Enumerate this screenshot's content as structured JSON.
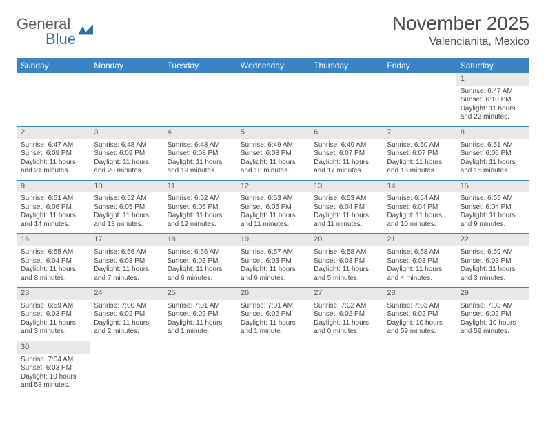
{
  "logo": {
    "text1": "General",
    "text2": "Blue"
  },
  "title": "November 2025",
  "location": "Valencianita, Mexico",
  "colors": {
    "header_bg": "#3b84c4",
    "header_text": "#ffffff",
    "daynum_bg": "#e8e8e8",
    "row_border": "#3b84c4",
    "logo_gray": "#5a5a5a",
    "logo_blue": "#2f6fa7"
  },
  "weekdays": [
    "Sunday",
    "Monday",
    "Tuesday",
    "Wednesday",
    "Thursday",
    "Friday",
    "Saturday"
  ],
  "weeks": [
    [
      null,
      null,
      null,
      null,
      null,
      null,
      {
        "n": "1",
        "sr": "6:47 AM",
        "ss": "6:10 PM",
        "dl": "11 hours and 22 minutes."
      }
    ],
    [
      {
        "n": "2",
        "sr": "6:47 AM",
        "ss": "6:09 PM",
        "dl": "11 hours and 21 minutes."
      },
      {
        "n": "3",
        "sr": "6:48 AM",
        "ss": "6:09 PM",
        "dl": "11 hours and 20 minutes."
      },
      {
        "n": "4",
        "sr": "6:48 AM",
        "ss": "6:08 PM",
        "dl": "11 hours and 19 minutes."
      },
      {
        "n": "5",
        "sr": "6:49 AM",
        "ss": "6:08 PM",
        "dl": "11 hours and 18 minutes."
      },
      {
        "n": "6",
        "sr": "6:49 AM",
        "ss": "6:07 PM",
        "dl": "11 hours and 17 minutes."
      },
      {
        "n": "7",
        "sr": "6:50 AM",
        "ss": "6:07 PM",
        "dl": "11 hours and 16 minutes."
      },
      {
        "n": "8",
        "sr": "6:51 AM",
        "ss": "6:06 PM",
        "dl": "11 hours and 15 minutes."
      }
    ],
    [
      {
        "n": "9",
        "sr": "6:51 AM",
        "ss": "6:06 PM",
        "dl": "11 hours and 14 minutes."
      },
      {
        "n": "10",
        "sr": "6:52 AM",
        "ss": "6:05 PM",
        "dl": "11 hours and 13 minutes."
      },
      {
        "n": "11",
        "sr": "6:52 AM",
        "ss": "6:05 PM",
        "dl": "11 hours and 12 minutes."
      },
      {
        "n": "12",
        "sr": "6:53 AM",
        "ss": "6:05 PM",
        "dl": "11 hours and 11 minutes."
      },
      {
        "n": "13",
        "sr": "6:53 AM",
        "ss": "6:04 PM",
        "dl": "11 hours and 11 minutes."
      },
      {
        "n": "14",
        "sr": "6:54 AM",
        "ss": "6:04 PM",
        "dl": "11 hours and 10 minutes."
      },
      {
        "n": "15",
        "sr": "6:55 AM",
        "ss": "6:04 PM",
        "dl": "11 hours and 9 minutes."
      }
    ],
    [
      {
        "n": "16",
        "sr": "6:55 AM",
        "ss": "6:04 PM",
        "dl": "11 hours and 8 minutes."
      },
      {
        "n": "17",
        "sr": "6:56 AM",
        "ss": "6:03 PM",
        "dl": "11 hours and 7 minutes."
      },
      {
        "n": "18",
        "sr": "6:56 AM",
        "ss": "6:03 PM",
        "dl": "11 hours and 6 minutes."
      },
      {
        "n": "19",
        "sr": "6:57 AM",
        "ss": "6:03 PM",
        "dl": "11 hours and 6 minutes."
      },
      {
        "n": "20",
        "sr": "6:58 AM",
        "ss": "6:03 PM",
        "dl": "11 hours and 5 minutes."
      },
      {
        "n": "21",
        "sr": "6:58 AM",
        "ss": "6:03 PM",
        "dl": "11 hours and 4 minutes."
      },
      {
        "n": "22",
        "sr": "6:59 AM",
        "ss": "6:03 PM",
        "dl": "11 hours and 3 minutes."
      }
    ],
    [
      {
        "n": "23",
        "sr": "6:59 AM",
        "ss": "6:03 PM",
        "dl": "11 hours and 3 minutes."
      },
      {
        "n": "24",
        "sr": "7:00 AM",
        "ss": "6:02 PM",
        "dl": "11 hours and 2 minutes."
      },
      {
        "n": "25",
        "sr": "7:01 AM",
        "ss": "6:02 PM",
        "dl": "11 hours and 1 minute."
      },
      {
        "n": "26",
        "sr": "7:01 AM",
        "ss": "6:02 PM",
        "dl": "11 hours and 1 minute."
      },
      {
        "n": "27",
        "sr": "7:02 AM",
        "ss": "6:02 PM",
        "dl": "11 hours and 0 minutes."
      },
      {
        "n": "28",
        "sr": "7:03 AM",
        "ss": "6:02 PM",
        "dl": "10 hours and 59 minutes."
      },
      {
        "n": "29",
        "sr": "7:03 AM",
        "ss": "6:02 PM",
        "dl": "10 hours and 59 minutes."
      }
    ],
    [
      {
        "n": "30",
        "sr": "7:04 AM",
        "ss": "6:03 PM",
        "dl": "10 hours and 58 minutes."
      },
      null,
      null,
      null,
      null,
      null,
      null
    ]
  ],
  "labels": {
    "sunrise": "Sunrise:",
    "sunset": "Sunset:",
    "daylight": "Daylight:"
  }
}
